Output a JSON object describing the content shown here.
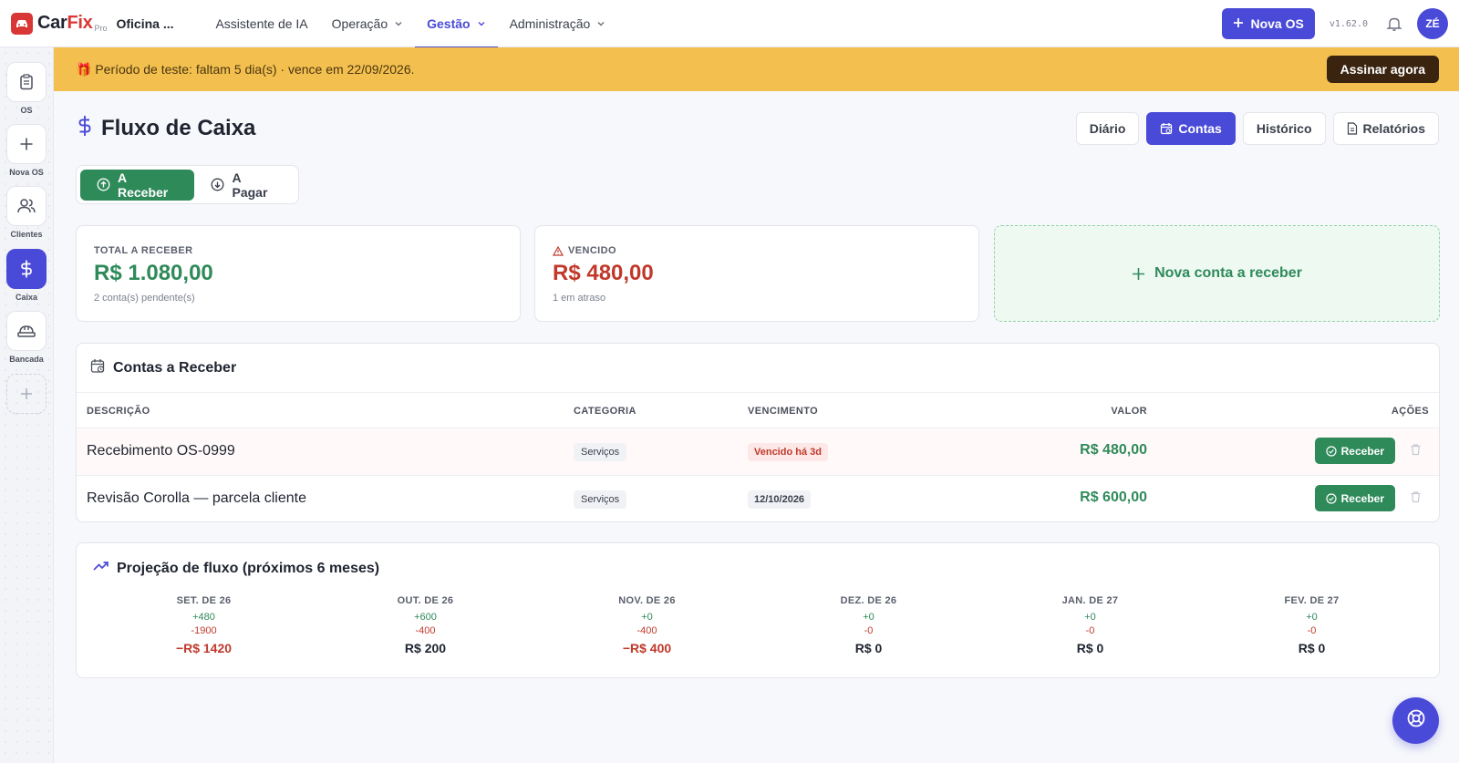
{
  "app": {
    "logo_car": "Car",
    "logo_fix": "Fix",
    "logo_pro": "Pro",
    "shop_name": "Oficina ...",
    "version": "v1.62.0",
    "user_initials": "ZÉ",
    "accent_color": "#4a4ad8",
    "brand_color": "#d93636"
  },
  "nav": {
    "items": [
      {
        "label": "Assistente de IA"
      },
      {
        "label": "Operação"
      },
      {
        "label": "Gestão"
      },
      {
        "label": "Administração"
      }
    ],
    "new_os_label": "Nova OS"
  },
  "sidebar": {
    "items": [
      {
        "label": "OS",
        "icon": "clipboard-icon"
      },
      {
        "label": "Nova OS",
        "icon": "plus-icon"
      },
      {
        "label": "Clientes",
        "icon": "users-icon"
      },
      {
        "label": "Caixa",
        "icon": "dollar-icon",
        "active": true
      },
      {
        "label": "Bancada",
        "icon": "workbench-icon"
      },
      {
        "label": "",
        "icon": "add-shortcut-icon"
      }
    ]
  },
  "banner": {
    "text": "🎁 Período de teste: faltam 5 dia(s) · vence em 22/09/2026.",
    "cta": "Assinar agora",
    "color": "#f3c04f"
  },
  "page": {
    "title": "Fluxo de Caixa",
    "view_tabs": [
      {
        "label": "Diário"
      },
      {
        "label": "Contas",
        "active": true
      },
      {
        "label": "Histórico"
      },
      {
        "label": "Relatórios"
      }
    ],
    "toggle": {
      "receber": "A Receber",
      "pagar": "A Pagar"
    }
  },
  "summary": {
    "total": {
      "label": "TOTAL A RECEBER",
      "value": "R$ 1.080,00",
      "sub": "2 conta(s) pendente(s)",
      "color": "#2f8a5a"
    },
    "overdue": {
      "label": "VENCIDO",
      "value": "R$ 480,00",
      "sub": "1 em atraso",
      "color": "#c0392b"
    },
    "new_label": "Nova conta a receber"
  },
  "accounts": {
    "title": "Contas a Receber",
    "headers": {
      "description": "DESCRIÇÃO",
      "category": "CATEGORIA",
      "due": "VENCIMENTO",
      "value": "VALOR",
      "actions": "AÇÕES"
    },
    "rows": [
      {
        "description": "Recebimento OS-0999",
        "category": "Serviços",
        "due": "Vencido há 3d",
        "value": "R$ 480,00",
        "action": "Receber"
      },
      {
        "description": "Revisão Corolla — parcela cliente",
        "category": "Serviços",
        "due": "12/10/2026",
        "value": "R$ 600,00",
        "action": "Receber"
      }
    ]
  },
  "projection": {
    "title": "Projeção de fluxo (próximos 6 meses)",
    "months": [
      {
        "month": "SET. DE 26",
        "in": "+480",
        "out": "-1900",
        "balance": "−R$ 1420"
      },
      {
        "month": "OUT. DE 26",
        "in": "+600",
        "out": "-400",
        "balance": "R$ 200"
      },
      {
        "month": "NOV. DE 26",
        "in": "+0",
        "out": "-400",
        "balance": "−R$ 400"
      },
      {
        "month": "DEZ. DE 26",
        "in": "+0",
        "out": "-0",
        "balance": "R$ 0"
      },
      {
        "month": "JAN. DE 27",
        "in": "+0",
        "out": "-0",
        "balance": "R$ 0"
      },
      {
        "month": "FEV. DE 27",
        "in": "+0",
        "out": "-0",
        "balance": "R$ 0"
      }
    ]
  }
}
